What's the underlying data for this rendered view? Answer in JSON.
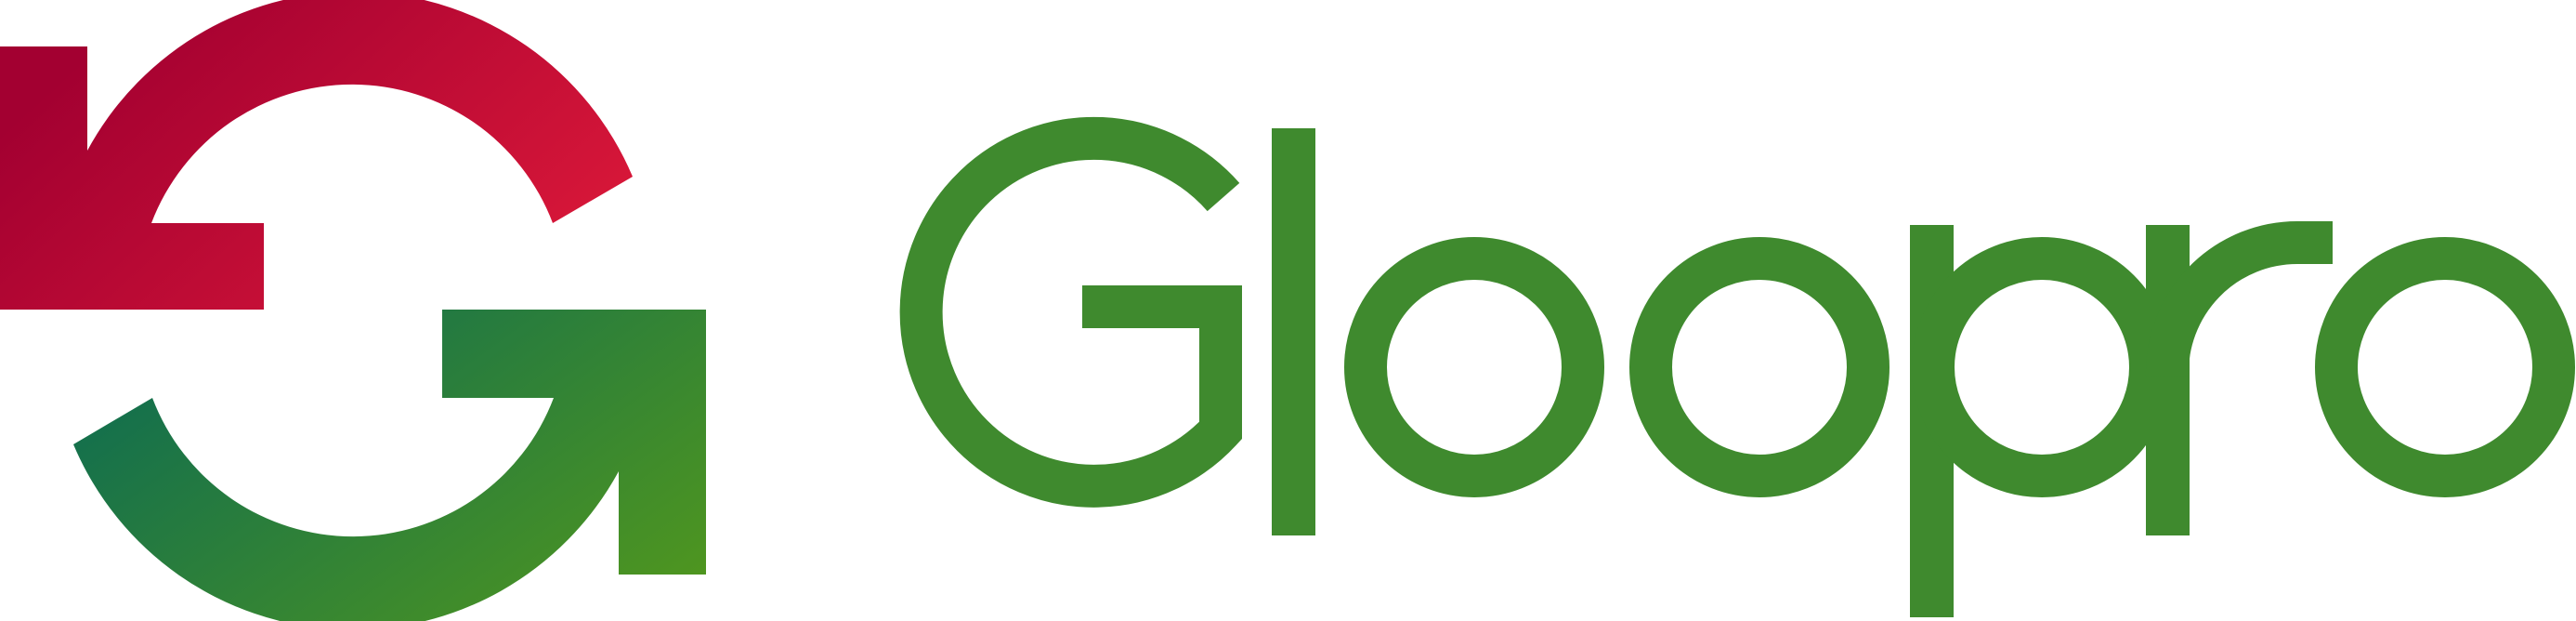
{
  "brand": {
    "name": "Gloopro",
    "colors": {
      "red_dark": "#a30031",
      "red_light": "#e11b3a",
      "green_dark": "#0d6b52",
      "green_light": "#4f961f",
      "wordmark": "#3f8a2e"
    },
    "icons": {
      "mark": "circular-arrows-g-icon"
    }
  }
}
